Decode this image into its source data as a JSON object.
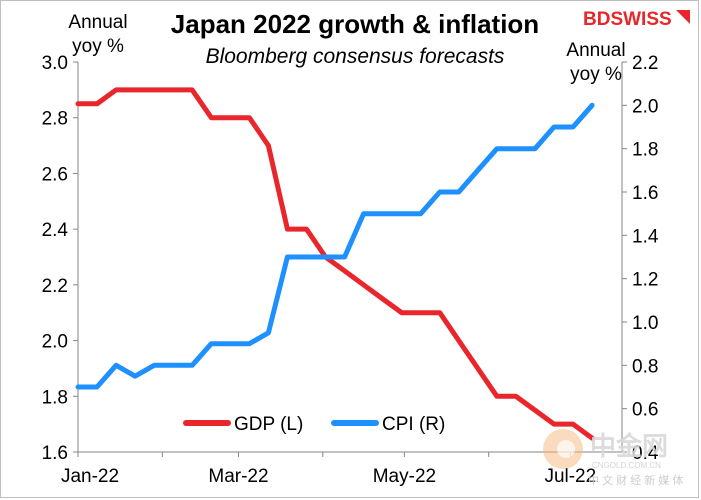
{
  "chart_data": {
    "type": "line",
    "title": "Japan 2022 growth & inflation",
    "subtitle": "Bloomberg consensus forecasts",
    "left_axis": {
      "unit_line1": "Annual",
      "unit_line2": "yoy %",
      "ylim": [
        1.6,
        3.0
      ],
      "ticks": [
        "1.6",
        "1.8",
        "2.0",
        "2.2",
        "2.4",
        "2.6",
        "2.8",
        "3.0"
      ]
    },
    "right_axis": {
      "unit_line1": "Annual",
      "unit_line2": "yoy %",
      "ylim": [
        0.4,
        2.2
      ],
      "ticks": [
        "0.4",
        "0.6",
        "0.8",
        "1.0",
        "1.2",
        "1.4",
        "1.6",
        "1.8",
        "2.0",
        "2.2"
      ]
    },
    "x_ticks": [
      "Jan-22",
      "Mar-22",
      "May-22",
      "Jul-22"
    ],
    "x_range": [
      "2022-01-01",
      "2022-07-20"
    ],
    "legend_position": "bottom-center",
    "series": [
      {
        "name": "GDP (L)",
        "axis": "left",
        "color": "#e8262c",
        "points": [
          [
            "2022-01-01",
            2.85
          ],
          [
            "2022-01-08",
            2.85
          ],
          [
            "2022-01-15",
            2.9
          ],
          [
            "2022-01-22",
            2.9
          ],
          [
            "2022-01-29",
            2.9
          ],
          [
            "2022-02-05",
            2.9
          ],
          [
            "2022-02-12",
            2.9
          ],
          [
            "2022-02-19",
            2.8
          ],
          [
            "2022-02-26",
            2.8
          ],
          [
            "2022-03-05",
            2.8
          ],
          [
            "2022-03-12",
            2.7
          ],
          [
            "2022-03-19",
            2.4
          ],
          [
            "2022-03-26",
            2.4
          ],
          [
            "2022-04-02",
            2.3
          ],
          [
            "2022-04-09",
            2.25
          ],
          [
            "2022-04-16",
            2.2
          ],
          [
            "2022-04-23",
            2.15
          ],
          [
            "2022-04-30",
            2.1
          ],
          [
            "2022-05-07",
            2.1
          ],
          [
            "2022-05-14",
            2.1
          ],
          [
            "2022-05-21",
            2.0
          ],
          [
            "2022-05-28",
            1.9
          ],
          [
            "2022-06-04",
            1.8
          ],
          [
            "2022-06-11",
            1.8
          ],
          [
            "2022-06-18",
            1.75
          ],
          [
            "2022-06-25",
            1.7
          ],
          [
            "2022-07-02",
            1.7
          ],
          [
            "2022-07-09",
            1.65
          ]
        ]
      },
      {
        "name": "CPI (R)",
        "axis": "right",
        "color": "#1e90ff",
        "points": [
          [
            "2022-01-01",
            0.7
          ],
          [
            "2022-01-08",
            0.7
          ],
          [
            "2022-01-15",
            0.8
          ],
          [
            "2022-01-22",
            0.75
          ],
          [
            "2022-01-29",
            0.8
          ],
          [
            "2022-02-05",
            0.8
          ],
          [
            "2022-02-12",
            0.8
          ],
          [
            "2022-02-19",
            0.9
          ],
          [
            "2022-02-26",
            0.9
          ],
          [
            "2022-03-05",
            0.9
          ],
          [
            "2022-03-12",
            0.95
          ],
          [
            "2022-03-19",
            1.3
          ],
          [
            "2022-03-26",
            1.3
          ],
          [
            "2022-04-02",
            1.3
          ],
          [
            "2022-04-09",
            1.3
          ],
          [
            "2022-04-16",
            1.5
          ],
          [
            "2022-04-23",
            1.5
          ],
          [
            "2022-04-30",
            1.5
          ],
          [
            "2022-05-07",
            1.5
          ],
          [
            "2022-05-14",
            1.6
          ],
          [
            "2022-05-21",
            1.6
          ],
          [
            "2022-05-28",
            1.7
          ],
          [
            "2022-06-04",
            1.8
          ],
          [
            "2022-06-11",
            1.8
          ],
          [
            "2022-06-18",
            1.8
          ],
          [
            "2022-06-25",
            1.9
          ],
          [
            "2022-07-02",
            1.9
          ],
          [
            "2022-07-09",
            2.0
          ]
        ]
      }
    ]
  },
  "brand": {
    "text": "BDSWISS",
    "color": "#e8262c"
  },
  "watermark": {
    "cn": "中金网",
    "url": "CNGOLD.COM.CN",
    "tagline": "中 文 财 经 新 媒 体"
  }
}
